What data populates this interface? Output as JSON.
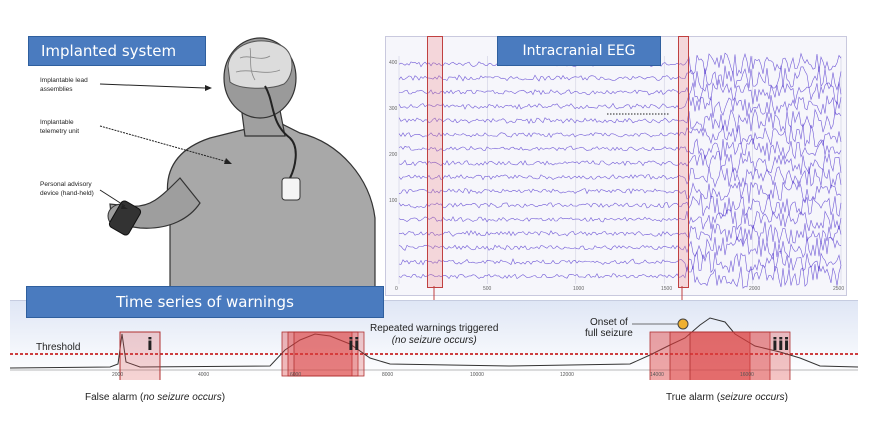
{
  "panels": {
    "implanted_title": "Implanted system",
    "eeg_title": "Intracranial EEG",
    "warnings_title": "Time series of warnings"
  },
  "implant_labels": {
    "lead": "Implantable lead assemblies",
    "telemetry": "Implantable telemetry unit",
    "advisory": "Personal advisory device (hand-held)"
  },
  "eeg_axis": {
    "x_ticks": [
      "0",
      "500",
      "1000",
      "1500",
      "2000",
      "2500"
    ],
    "y_ticks": [
      "400",
      "300",
      "200",
      "100"
    ]
  },
  "warning_axis": {
    "x_ticks": [
      "2000",
      "4000",
      "6000",
      "8000",
      "10000",
      "12000",
      "14000",
      "16000"
    ]
  },
  "annotations": {
    "threshold": "Threshold",
    "repeated_line1": "Repeated warnings triggered",
    "repeated_line2": "(no seizure occurs)",
    "onset_line1": "Onset of",
    "onset_line2": "full seizure",
    "false_alarm_prefix": "False alarm (",
    "false_alarm_italic": "no seizure occurs",
    "false_alarm_suffix": ")",
    "true_alarm_prefix": "True alarm (",
    "true_alarm_italic": "seizure occurs",
    "true_alarm_suffix": ")",
    "marker_i": "i",
    "marker_ii": "ii",
    "marker_iii": "iii"
  },
  "colors": {
    "title_bg": "#4a7bbf",
    "eeg_trace": "#5a3fd0",
    "warning_fill": "#e04040",
    "threshold": "#c00000"
  }
}
